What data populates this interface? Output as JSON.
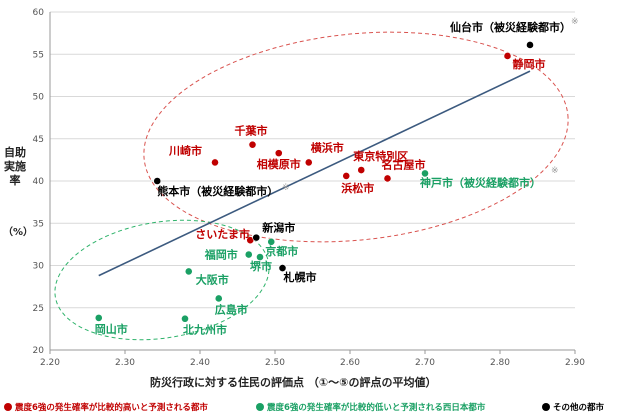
{
  "chart_data": {
    "type": "scatter",
    "xlabel": "防災行政に対する住民の評価点 （①～⑤の評点の平均値）",
    "ylabel_main": "自助実施率",
    "ylabel_unit": "（%）",
    "xlim": [
      2.2,
      2.9
    ],
    "ylim": [
      20,
      60
    ],
    "xticks": [
      "2.20",
      "2.30",
      "2.40",
      "2.50",
      "2.60",
      "2.70",
      "2.80",
      "2.90"
    ],
    "yticks": [
      "20",
      "25",
      "30",
      "35",
      "40",
      "45",
      "50",
      "55",
      "60"
    ],
    "gridlines": "horizontal",
    "trendline": {
      "x": [
        2.265,
        2.84
      ],
      "y": [
        28.8,
        53.0
      ]
    },
    "colors": {
      "red": "#c00000",
      "green": "#1aa064",
      "black": "#000000"
    },
    "points": [
      {
        "label": "仙台市（被災経験都市）",
        "x": 2.84,
        "y": 56.1,
        "group": "black"
      },
      {
        "label": "静岡市",
        "x": 2.81,
        "y": 54.8,
        "group": "red"
      },
      {
        "label": "千葉市",
        "x": 2.47,
        "y": 44.3,
        "group": "red"
      },
      {
        "label": "横浜市",
        "x": 2.545,
        "y": 42.2,
        "group": "red"
      },
      {
        "label": "相模原市",
        "x": 2.505,
        "y": 43.3,
        "group": "red"
      },
      {
        "label": "川崎市",
        "x": 2.42,
        "y": 42.2,
        "group": "red"
      },
      {
        "label": "東京特別区",
        "x": 2.615,
        "y": 41.3,
        "group": "red"
      },
      {
        "label": "名古屋市",
        "x": 2.65,
        "y": 40.3,
        "group": "red"
      },
      {
        "label": "浜松市",
        "x": 2.595,
        "y": 40.6,
        "group": "red"
      },
      {
        "label": "神戸市（被災経験都市）",
        "x": 2.7,
        "y": 40.9,
        "group": "green"
      },
      {
        "label": "熊本市（被災経験都市）",
        "x": 2.343,
        "y": 40.0,
        "group": "black"
      },
      {
        "label": "さいたま市",
        "x": 2.467,
        "y": 33.0,
        "group": "red"
      },
      {
        "label": "新潟市",
        "x": 2.475,
        "y": 33.3,
        "group": "black"
      },
      {
        "label": "京都市",
        "x": 2.495,
        "y": 32.8,
        "group": "green"
      },
      {
        "label": "福岡市",
        "x": 2.465,
        "y": 31.3,
        "group": "green"
      },
      {
        "label": "堺市",
        "x": 2.48,
        "y": 31.0,
        "group": "green"
      },
      {
        "label": "札幌市",
        "x": 2.51,
        "y": 29.7,
        "group": "black"
      },
      {
        "label": "大阪市",
        "x": 2.385,
        "y": 29.3,
        "group": "green"
      },
      {
        "label": "広島市",
        "x": 2.425,
        "y": 26.1,
        "group": "green"
      },
      {
        "label": "岡山市",
        "x": 2.265,
        "y": 23.8,
        "group": "green"
      },
      {
        "label": "北九州市",
        "x": 2.38,
        "y": 23.7,
        "group": "green"
      }
    ],
    "annotations": [
      "※",
      "※",
      "※"
    ]
  },
  "legend": [
    {
      "label": "震度6強の発生確率が比較的高いと予測される都市",
      "color": "#c00000"
    },
    {
      "label": "震度6強の発生確率が比較的低いと予測される西日本都市",
      "color": "#1aa064"
    },
    {
      "label": "その他の都市",
      "color": "#000000"
    }
  ]
}
